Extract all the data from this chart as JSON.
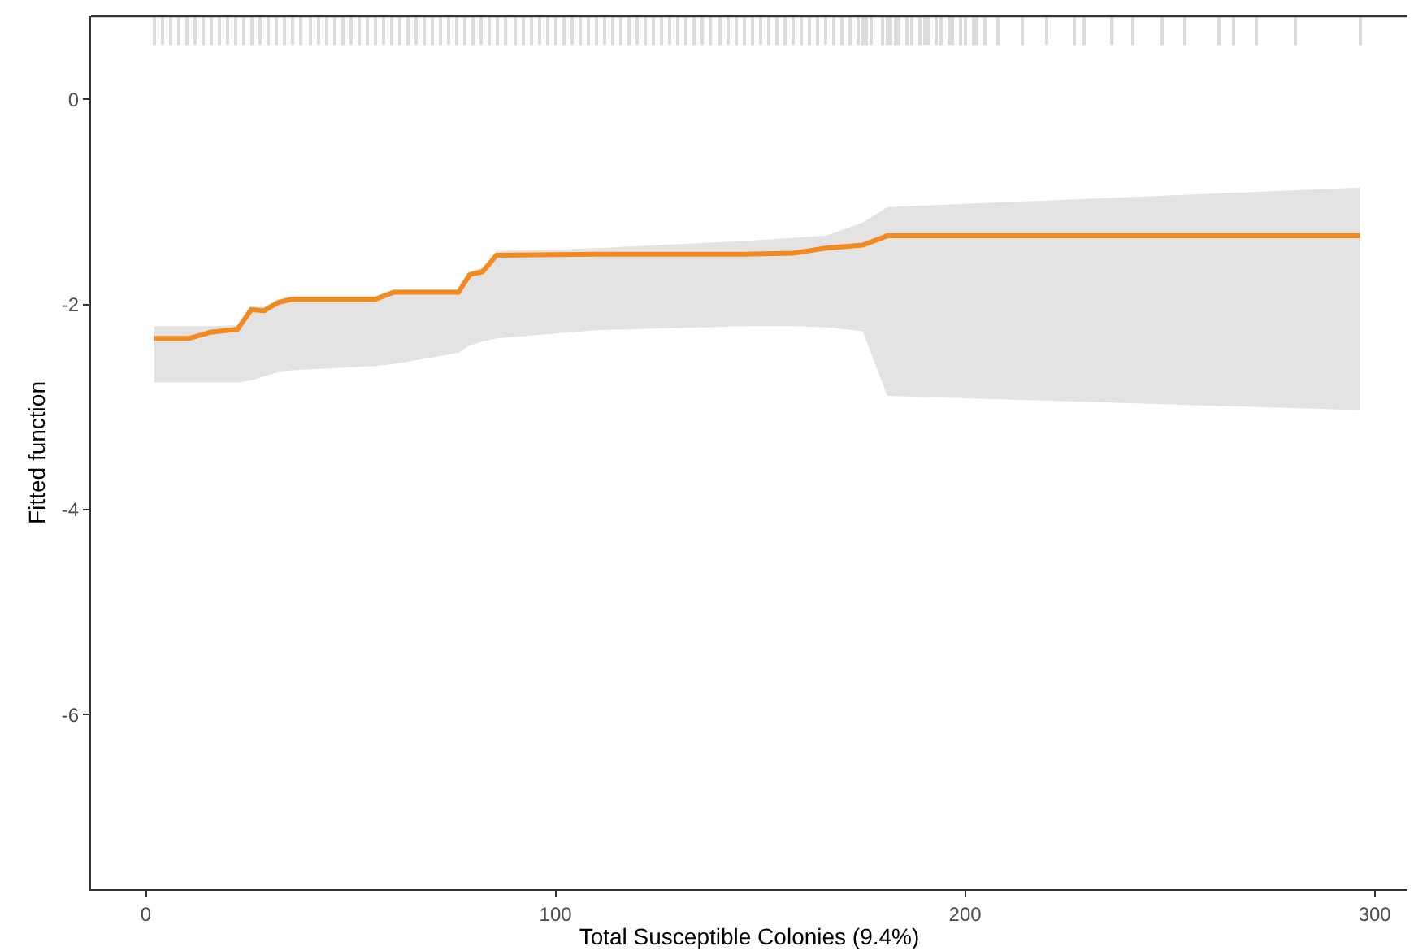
{
  "chart_data": {
    "type": "line",
    "xlabel": "Total Susceptible Colonies (9.4%)",
    "ylabel": "Fitted function",
    "xlim": [
      -13.4,
      308
    ],
    "xticks": [
      0,
      100,
      200,
      300
    ],
    "ylim": [
      -7.7,
      0.81
    ],
    "yticks": [
      -6,
      -4,
      -2,
      0
    ],
    "series": [
      {
        "color": "#f28a1e",
        "x": [
          2,
          10.5,
          15.8,
          22.4,
          25.7,
          28.9,
          32.3,
          35.6,
          56,
          60.5,
          76.3,
          79,
          82.2,
          85.6,
          110,
          146,
          158,
          166,
          175,
          181,
          296.4
        ],
        "values": [
          -2.33,
          -2.33,
          -2.27,
          -2.24,
          -2.05,
          -2.06,
          -1.98,
          -1.95,
          -1.95,
          -1.88,
          -1.88,
          -1.71,
          -1.68,
          -1.52,
          -1.51,
          -1.51,
          -1.5,
          -1.45,
          -1.42,
          -1.33,
          -1.33
        ],
        "lower": [
          -2.76,
          -2.76,
          -2.76,
          -2.76,
          -2.74,
          -2.7,
          -2.66,
          -2.64,
          -2.6,
          -2.58,
          -2.47,
          -2.4,
          -2.36,
          -2.33,
          -2.25,
          -2.21,
          -2.21,
          -2.22,
          -2.26,
          -2.89,
          -3.03
        ],
        "upper": [
          -2.21,
          -2.21,
          -2.21,
          -2.2,
          -2.02,
          -2.02,
          -1.95,
          -1.92,
          -1.92,
          -1.85,
          -1.85,
          -1.68,
          -1.64,
          -1.48,
          -1.45,
          -1.38,
          -1.35,
          -1.33,
          -1.2,
          -1.05,
          -0.86
        ]
      },
      {
        "type": "bar",
        "color": "#dcdcdc",
        "x": [
          2,
          4,
          6,
          8,
          10,
          12,
          14,
          16,
          18,
          20,
          22,
          24,
          26,
          28,
          30,
          32,
          34,
          36,
          38,
          40,
          42,
          44,
          46,
          48,
          50,
          52,
          54,
          56,
          58,
          60,
          62,
          64,
          66,
          68,
          70,
          72,
          74,
          76,
          78,
          80,
          82,
          84,
          86,
          88,
          90,
          92,
          94,
          96,
          98,
          100,
          102,
          104,
          106,
          108,
          110,
          112,
          114,
          116,
          118,
          120,
          122,
          124,
          126,
          128,
          130,
          132,
          134,
          136,
          138,
          140,
          142,
          144,
          146,
          148,
          150,
          152,
          154,
          156,
          158,
          160,
          162,
          164,
          166,
          168,
          170,
          172,
          174,
          175,
          176,
          177,
          180,
          181,
          182,
          183,
          184,
          186,
          187,
          189,
          190,
          191,
          193,
          194,
          196,
          197,
          199,
          200,
          202,
          203,
          205,
          208,
          214,
          220,
          226.5,
          229,
          236,
          241,
          248,
          253.6,
          262,
          265.5,
          271,
          280.6,
          296.4
        ],
        "base": [
          0.53,
          0.53,
          0.53,
          0.53,
          0.53,
          0.53,
          0.53,
          0.53,
          0.53,
          0.53,
          0.53,
          0.53,
          0.53,
          0.53,
          0.53,
          0.53,
          0.53,
          0.53,
          0.53,
          0.53,
          0.53,
          0.53,
          0.53,
          0.53,
          0.53,
          0.53,
          0.53,
          0.53,
          0.53,
          0.53,
          0.53,
          0.53,
          0.53,
          0.53,
          0.53,
          0.53,
          0.53,
          0.53,
          0.53,
          0.53,
          0.53,
          0.53,
          0.53,
          0.53,
          0.53,
          0.53,
          0.53,
          0.53,
          0.53,
          0.53,
          0.53,
          0.53,
          0.53,
          0.53,
          0.53,
          0.53,
          0.53,
          0.53,
          0.53,
          0.53,
          0.53,
          0.53,
          0.53,
          0.53,
          0.53,
          0.53,
          0.53,
          0.53,
          0.53,
          0.53,
          0.53,
          0.53,
          0.53,
          0.53,
          0.53,
          0.53,
          0.53,
          0.53,
          0.53,
          0.53,
          0.53,
          0.53,
          0.53,
          0.53,
          0.53,
          0.53,
          0.53,
          0.53,
          0.53,
          0.53,
          0.53,
          0.53,
          0.53,
          0.53,
          0.53,
          0.53,
          0.53,
          0.53,
          0.53,
          0.53,
          0.53,
          0.53,
          0.53,
          0.53,
          0.53,
          0.53,
          0.53,
          0.53,
          0.53,
          0.53,
          0.53,
          0.53,
          0.53,
          0.53,
          0.53,
          0.53,
          0.53,
          0.53,
          0.53,
          0.53,
          0.53,
          0.53,
          0.53
        ],
        "values": [
          0.27,
          0.27,
          0.27,
          0.27,
          0.27,
          0.27,
          0.27,
          0.27,
          0.27,
          0.27,
          0.27,
          0.27,
          0.27,
          0.27,
          0.27,
          0.27,
          0.27,
          0.27,
          0.27,
          0.27,
          0.27,
          0.27,
          0.27,
          0.27,
          0.27,
          0.27,
          0.27,
          0.27,
          0.27,
          0.27,
          0.27,
          0.27,
          0.27,
          0.27,
          0.27,
          0.27,
          0.27,
          0.27,
          0.27,
          0.27,
          0.27,
          0.27,
          0.27,
          0.27,
          0.27,
          0.27,
          0.27,
          0.27,
          0.27,
          0.27,
          0.27,
          0.27,
          0.27,
          0.27,
          0.27,
          0.27,
          0.27,
          0.27,
          0.27,
          0.27,
          0.27,
          0.27,
          0.27,
          0.27,
          0.27,
          0.27,
          0.27,
          0.27,
          0.27,
          0.27,
          0.27,
          0.27,
          0.27,
          0.27,
          0.27,
          0.27,
          0.27,
          0.27,
          0.27,
          0.27,
          0.27,
          0.27,
          0.27,
          0.27,
          0.27,
          0.27,
          0.27,
          0.27,
          0.27,
          0.27,
          0.27,
          0.27,
          0.27,
          0.27,
          0.27,
          0.27,
          0.27,
          0.27,
          0.27,
          0.27,
          0.27,
          0.27,
          0.27,
          0.27,
          0.27,
          0.27,
          0.27,
          0.27,
          0.27,
          0.27,
          0.27,
          0.27,
          0.27,
          0.27,
          0.27,
          0.27,
          0.27,
          0.27,
          0.27,
          0.27,
          0.27,
          0.27,
          0.27
        ]
      }
    ]
  }
}
